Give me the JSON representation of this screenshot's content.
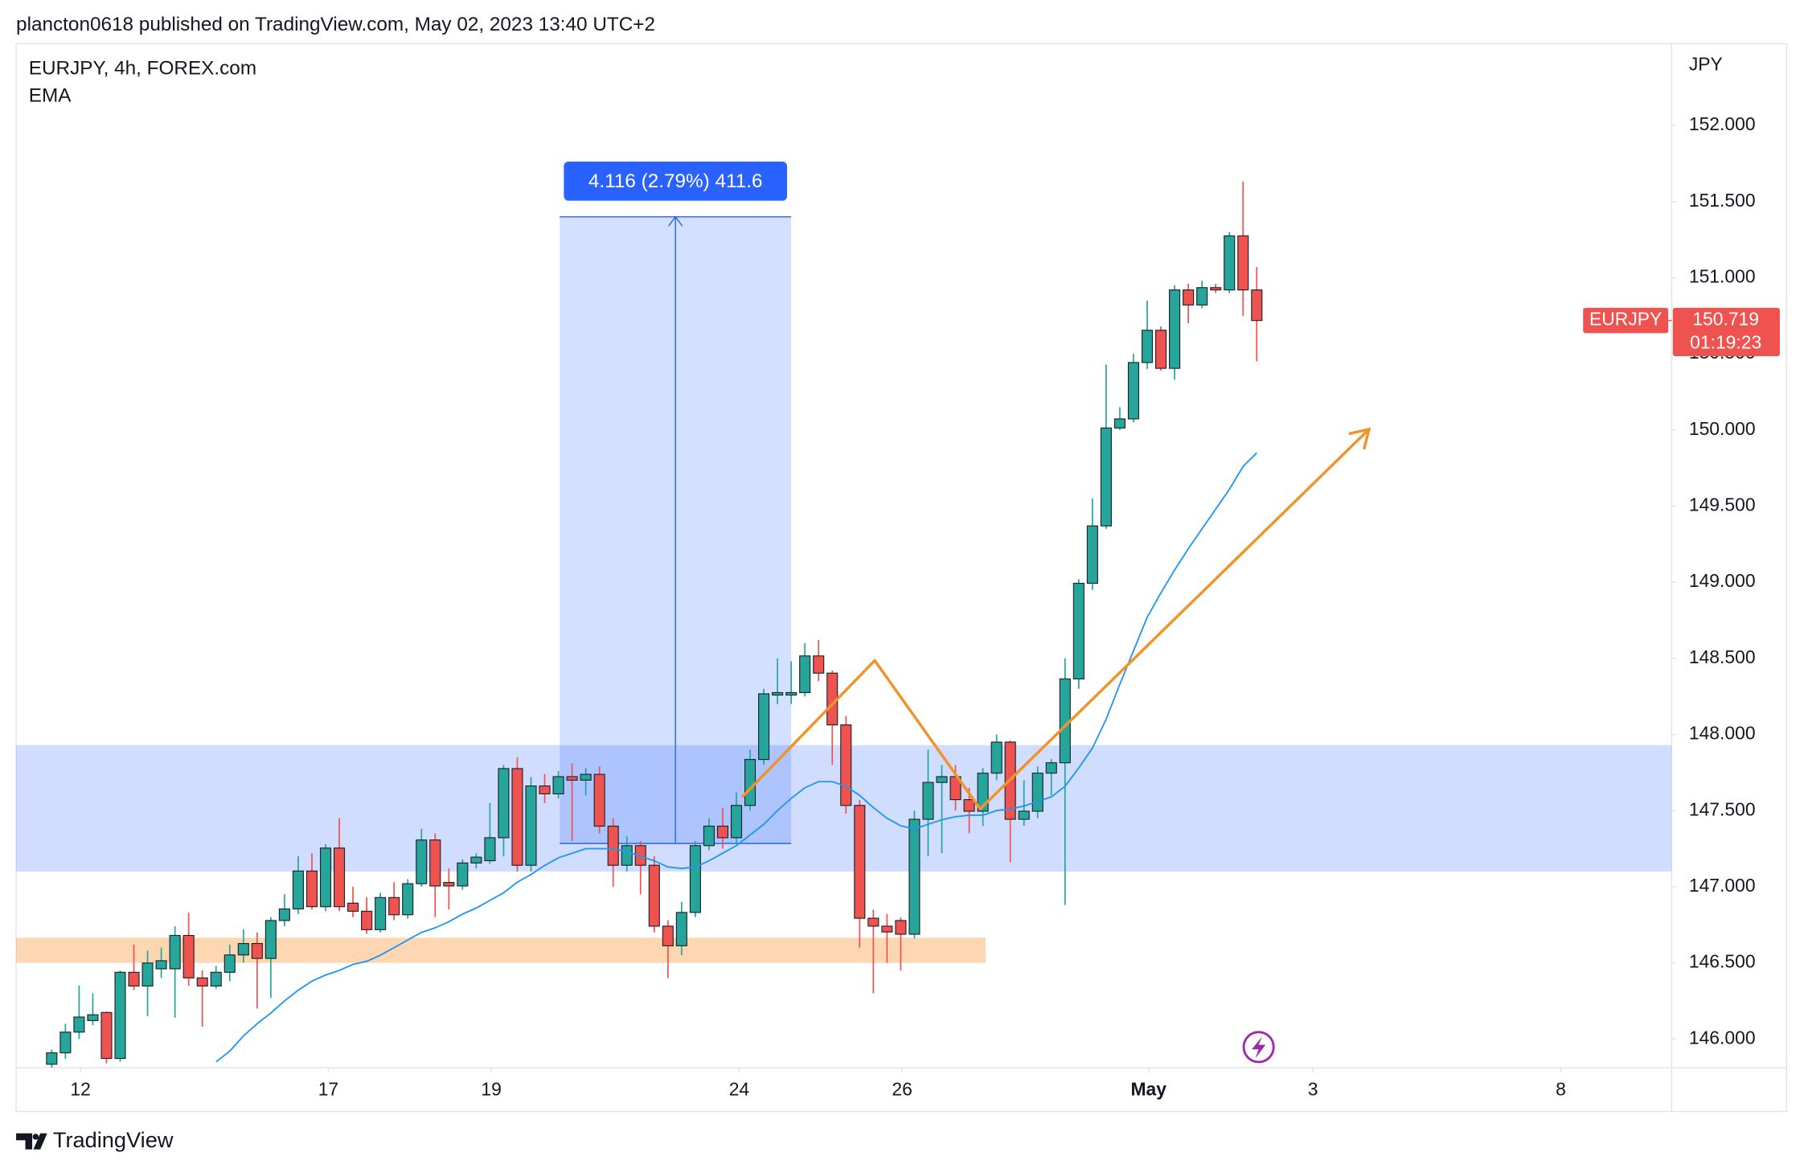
{
  "header": "plancton0618 published on TradingView.com, May 02, 2023 13:40 UTC+2",
  "footer": "TradingView",
  "chart_data": {
    "type": "candlestick",
    "title": "EURJPY, 4h, FOREX.com",
    "y_axis_label": "JPY",
    "up_color": "#26a69a",
    "down_color": "#ef5350",
    "xlim": [
      -2.6,
      118.3
    ],
    "ylim": [
      145.811,
      152.537
    ],
    "xticks": [
      {
        "value": 2.1,
        "label": "12"
      },
      {
        "value": 20.2,
        "label": "17"
      },
      {
        "value": 32.1,
        "label": "19"
      },
      {
        "value": 50.2,
        "label": "24"
      },
      {
        "value": 62.1,
        "label": "26"
      },
      {
        "value": 80.1,
        "label": "May"
      },
      {
        "value": 92.1,
        "label": "3"
      },
      {
        "value": 110.2,
        "label": "8"
      }
    ],
    "yticks": [
      {
        "value": 146,
        "label": "146.000"
      },
      {
        "value": 146.5,
        "label": "146.500"
      },
      {
        "value": 147,
        "label": "147.000"
      },
      {
        "value": 147.5,
        "label": "147.500"
      },
      {
        "value": 148,
        "label": "148.000"
      },
      {
        "value": 148.5,
        "label": "148.500"
      },
      {
        "value": 149,
        "label": "149.000"
      },
      {
        "value": 149.5,
        "label": "149.500"
      },
      {
        "value": 150,
        "label": "150.000"
      },
      {
        "value": 150.5,
        "label": "150.500"
      },
      {
        "value": 151,
        "label": "151.000"
      },
      {
        "value": 151.5,
        "label": "151.500"
      },
      {
        "value": 152,
        "label": "152.000"
      }
    ],
    "open": [
      145.834,
      145.909,
      146.045,
      146.121,
      146.174,
      145.872,
      146.438,
      146.348,
      146.461,
      146.461,
      146.68,
      146.401,
      146.348,
      146.438,
      146.552,
      146.627,
      146.529,
      146.778,
      146.854,
      147.103,
      146.869,
      147.254,
      146.892,
      146.839,
      146.718,
      146.929,
      146.816,
      147.02,
      147.307,
      147.028,
      147.005,
      147.156,
      147.171,
      147.322,
      147.776,
      147.141,
      147.662,
      147.61,
      147.723,
      147.7,
      147.738,
      147.398,
      147.141,
      147.27,
      147.141,
      146.741,
      146.612,
      146.831,
      147.27,
      147.398,
      147.322,
      147.534,
      147.836,
      148.259,
      148.259,
      148.275,
      148.516,
      148.403,
      148.063,
      147.534,
      146.793,
      146.741,
      146.778,
      146.688,
      147.443,
      147.685,
      147.723,
      147.572,
      147.496,
      147.746,
      147.95,
      147.443,
      147.496,
      147.746,
      147.814,
      148.365,
      148.993,
      149.37,
      150.013,
      150.073,
      150.443,
      150.655,
      150.405,
      150.92,
      150.821,
      150.935,
      150.92,
      151.275,
      150.92
    ],
    "high": [
      145.93,
      146.1,
      146.35,
      146.3,
      146.18,
      146.45,
      146.62,
      146.58,
      146.6,
      146.74,
      146.83,
      146.45,
      146.48,
      146.62,
      146.72,
      146.7,
      146.8,
      146.95,
      147.2,
      147.22,
      147.28,
      147.45,
      147.0,
      146.93,
      146.96,
      147.03,
      147.05,
      147.38,
      147.35,
      147.12,
      147.18,
      147.22,
      147.55,
      147.8,
      147.85,
      147.72,
      147.74,
      147.76,
      147.81,
      147.78,
      147.79,
      147.45,
      147.33,
      147.3,
      147.2,
      146.78,
      146.9,
      147.3,
      147.45,
      147.52,
      147.62,
      147.9,
      148.3,
      148.5,
      148.48,
      148.6,
      148.62,
      148.42,
      148.12,
      147.57,
      146.85,
      146.82,
      146.8,
      147.5,
      147.9,
      147.8,
      147.8,
      147.65,
      147.78,
      148.0,
      147.96,
      147.7,
      147.79,
      147.84,
      148.5,
      149.02,
      149.55,
      150.43,
      150.15,
      150.5,
      150.85,
      150.68,
      150.95,
      150.96,
      150.98,
      150.96,
      151.3,
      151.63,
      151.07
    ],
    "low": [
      145.8,
      145.87,
      146.0,
      146.09,
      145.84,
      145.85,
      146.32,
      146.15,
      146.4,
      146.14,
      146.35,
      146.08,
      146.33,
      146.38,
      146.5,
      146.2,
      146.27,
      146.74,
      146.82,
      146.85,
      146.84,
      146.84,
      146.8,
      146.69,
      146.7,
      146.78,
      146.79,
      147.0,
      146.8,
      146.85,
      146.98,
      147.12,
      147.15,
      147.2,
      147.1,
      147.1,
      147.55,
      147.58,
      147.3,
      147.6,
      147.35,
      147.0,
      147.1,
      146.95,
      146.7,
      146.4,
      146.55,
      146.8,
      147.24,
      147.25,
      147.28,
      147.5,
      147.8,
      148.2,
      148.2,
      148.25,
      148.35,
      147.8,
      147.48,
      146.6,
      146.3,
      146.5,
      146.45,
      146.66,
      147.2,
      147.22,
      147.5,
      147.35,
      147.4,
      147.7,
      147.16,
      147.4,
      147.45,
      147.6,
      146.88,
      148.3,
      148.95,
      149.35,
      150.0,
      150.05,
      150.4,
      150.39,
      150.33,
      150.7,
      150.8,
      150.9,
      150.9,
      150.75,
      150.45
    ],
    "close": [
      145.909,
      146.045,
      146.144,
      146.159,
      145.872,
      146.438,
      146.348,
      146.499,
      146.514,
      146.68,
      146.401,
      146.348,
      146.438,
      146.552,
      146.627,
      146.529,
      146.778,
      146.854,
      147.103,
      146.869,
      147.254,
      146.869,
      146.839,
      146.718,
      146.929,
      146.816,
      147.02,
      147.307,
      147.005,
      147.005,
      147.156,
      147.194,
      147.322,
      147.776,
      147.141,
      147.662,
      147.61,
      147.723,
      147.7,
      147.738,
      147.398,
      147.141,
      147.27,
      147.141,
      146.741,
      146.612,
      146.831,
      147.27,
      147.398,
      147.322,
      147.534,
      147.836,
      148.267,
      148.275,
      148.275,
      148.516,
      148.403,
      148.063,
      147.534,
      146.793,
      146.741,
      146.703,
      146.688,
      147.443,
      147.685,
      147.723,
      147.572,
      147.496,
      147.746,
      147.95,
      147.443,
      147.496,
      147.746,
      147.814,
      148.365,
      148.993,
      149.37,
      150.013,
      150.073,
      150.443,
      150.655,
      150.405,
      150.92,
      150.821,
      150.935,
      150.92,
      151.275,
      150.92,
      150.719
    ],
    "ema": {
      "name": "EMA",
      "color": "#2196f3",
      "values": [
        null,
        null,
        null,
        null,
        null,
        null,
        null,
        null,
        null,
        null,
        null,
        null,
        145.85,
        145.92,
        146.02,
        146.1,
        146.17,
        146.25,
        146.32,
        146.38,
        146.42,
        146.45,
        146.49,
        146.51,
        146.55,
        146.6,
        146.65,
        146.7,
        146.73,
        146.77,
        146.82,
        146.86,
        146.91,
        146.96,
        147.03,
        147.08,
        147.14,
        147.19,
        147.22,
        147.25,
        147.25,
        147.25,
        147.23,
        147.2,
        147.17,
        147.13,
        147.12,
        147.13,
        147.17,
        147.22,
        147.27,
        147.34,
        147.41,
        147.5,
        147.58,
        147.65,
        147.69,
        147.69,
        147.66,
        147.6,
        147.52,
        147.45,
        147.4,
        147.38,
        147.41,
        147.44,
        147.46,
        147.47,
        147.47,
        147.5,
        147.51,
        147.53,
        147.56,
        147.59,
        147.66,
        147.78,
        147.91,
        148.1,
        148.33,
        148.55,
        148.77,
        148.93,
        149.08,
        149.22,
        149.35,
        149.48,
        149.61,
        149.76,
        149.85
      ]
    },
    "zones": [
      {
        "xmin": -2.6,
        "xmax": 118.3,
        "ymin": 147.1,
        "ymax": 147.93,
        "color": "#2962ff"
      },
      {
        "xmin": -2.6,
        "xmax": 68.2,
        "ymin": 146.5,
        "ymax": 146.665,
        "color": "#f57c00"
      }
    ],
    "measure": {
      "xmin": 37.1,
      "xmax": 54.0,
      "ymin": 147.284,
      "ymax": 151.4,
      "label": "4.116 (2.79%) 411.6",
      "color": "#2962ff"
    },
    "projection": {
      "x": [
        50.4,
        60.1,
        67.8,
        96.2
      ],
      "y": [
        147.587,
        148.486,
        147.511,
        150.005
      ],
      "color": "#f0932b"
    },
    "last_price": {
      "symbol": "EURJPY",
      "value": 150.719,
      "countdown": "01:19:23",
      "color": "#ef5350"
    }
  }
}
